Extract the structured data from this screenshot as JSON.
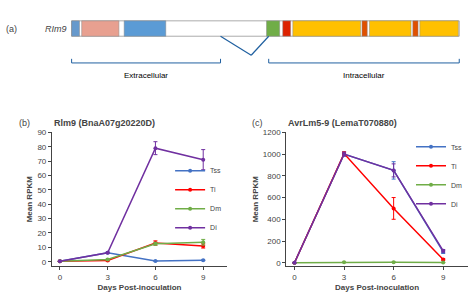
{
  "chart_data": [
    {
      "type": "domain_diagram",
      "title": "RIm9",
      "annotations": [
        "(a)"
      ],
      "xlim": [
        0,
        1
      ],
      "tick_labels": false,
      "bar_x_start": 0.095,
      "bar_x_end": 0.98,
      "domains": [
        {
          "x": 0.095,
          "w": 0.018,
          "color": "#6699CC"
        },
        {
          "x": 0.118,
          "w": 0.085,
          "color": "#E8A090"
        },
        {
          "x": 0.215,
          "w": 0.095,
          "color": "#5B9BD5"
        },
        {
          "x": 0.54,
          "w": 0.03,
          "color": "#70AD47"
        },
        {
          "x": 0.577,
          "w": 0.018,
          "color": "#DD2200"
        },
        {
          "x": 0.6,
          "w": 0.155,
          "color": "#FFC000"
        },
        {
          "x": 0.758,
          "w": 0.012,
          "color": "#E05000"
        },
        {
          "x": 0.775,
          "w": 0.095,
          "color": "#FFC000"
        },
        {
          "x": 0.874,
          "w": 0.012,
          "color": "#E05000"
        },
        {
          "x": 0.89,
          "w": 0.088,
          "color": "#FFC000"
        }
      ],
      "transmembrane": [
        [
          0.435,
          0.505
        ],
        [
          0.545,
          0.505
        ]
      ],
      "regions": [
        {
          "label": "Extracellular",
          "x": [
            0.095,
            0.435
          ]
        },
        {
          "label": "Intracellular",
          "x": [
            0.545,
            0.98
          ]
        }
      ]
    },
    {
      "type": "line",
      "title": "Rlm9 (BnaA07g20220D)",
      "annotations": [
        "(b)"
      ],
      "xlabel": "Days Post-inoculation",
      "ylabel": "Mean RPKM",
      "x": [
        0,
        3,
        6,
        9
      ],
      "xlim": [
        -0.5,
        10.5
      ],
      "ylim": [
        -3,
        90
      ],
      "xticks": [
        0,
        3,
        6,
        9
      ],
      "yticks": [
        0,
        10,
        20,
        30,
        40,
        50,
        60,
        70,
        80,
        90
      ],
      "grid": false,
      "legend": "right",
      "marker": "circle",
      "series": [
        {
          "name": "Tss",
          "color": "#4472C4",
          "values": [
            0.3,
            6.2,
            0.5,
            1.0
          ],
          "error": [
            0.1,
            0.4,
            0.2,
            0.3
          ]
        },
        {
          "name": "Ti",
          "color": "#FF0000",
          "values": [
            0.3,
            0.8,
            13.0,
            11.0
          ],
          "error": [
            0.1,
            0.4,
            1.5,
            1.5
          ]
        },
        {
          "name": "Dm",
          "color": "#70AD47",
          "values": [
            0.3,
            1.5,
            12.5,
            13.5
          ],
          "error": [
            0.1,
            0.4,
            1.0,
            2.0
          ]
        },
        {
          "name": "Di",
          "color": "#7030A0",
          "values": [
            0.3,
            6.2,
            79.0,
            71.0
          ],
          "error": [
            0.1,
            0.4,
            4.5,
            7.0
          ]
        }
      ]
    },
    {
      "type": "line",
      "title": "AvrLm5-9 (LemaT070880)",
      "annotations": [
        "(c)"
      ],
      "xlabel": "Days Post-inoculation",
      "ylabel": "Mean RPKM",
      "x": [
        0,
        3,
        6,
        9
      ],
      "xlim": [
        -0.5,
        10.5
      ],
      "ylim": [
        -30,
        1200
      ],
      "xticks": [
        0,
        3,
        6,
        9
      ],
      "yticks": [
        0,
        200,
        400,
        600,
        800,
        1000,
        1200
      ],
      "grid": false,
      "legend": "upper right",
      "marker": "circle",
      "series": [
        {
          "name": "Tss",
          "color": "#4472C4",
          "values": [
            0,
            1000,
            850,
            100
          ],
          "error": [
            0.5,
            20,
            80,
            15
          ]
        },
        {
          "name": "Ti",
          "color": "#FF0000",
          "values": [
            0,
            1005,
            500,
            30
          ],
          "error": [
            0.5,
            15,
            100,
            8
          ]
        },
        {
          "name": "Dm",
          "color": "#70AD47",
          "values": [
            0,
            5,
            5,
            2
          ],
          "error": [
            0.5,
            2,
            2,
            1
          ]
        },
        {
          "name": "Di",
          "color": "#7030A0",
          "values": [
            0,
            1000,
            850,
            110
          ],
          "error": [
            0.5,
            18,
            60,
            12
          ]
        }
      ]
    }
  ]
}
